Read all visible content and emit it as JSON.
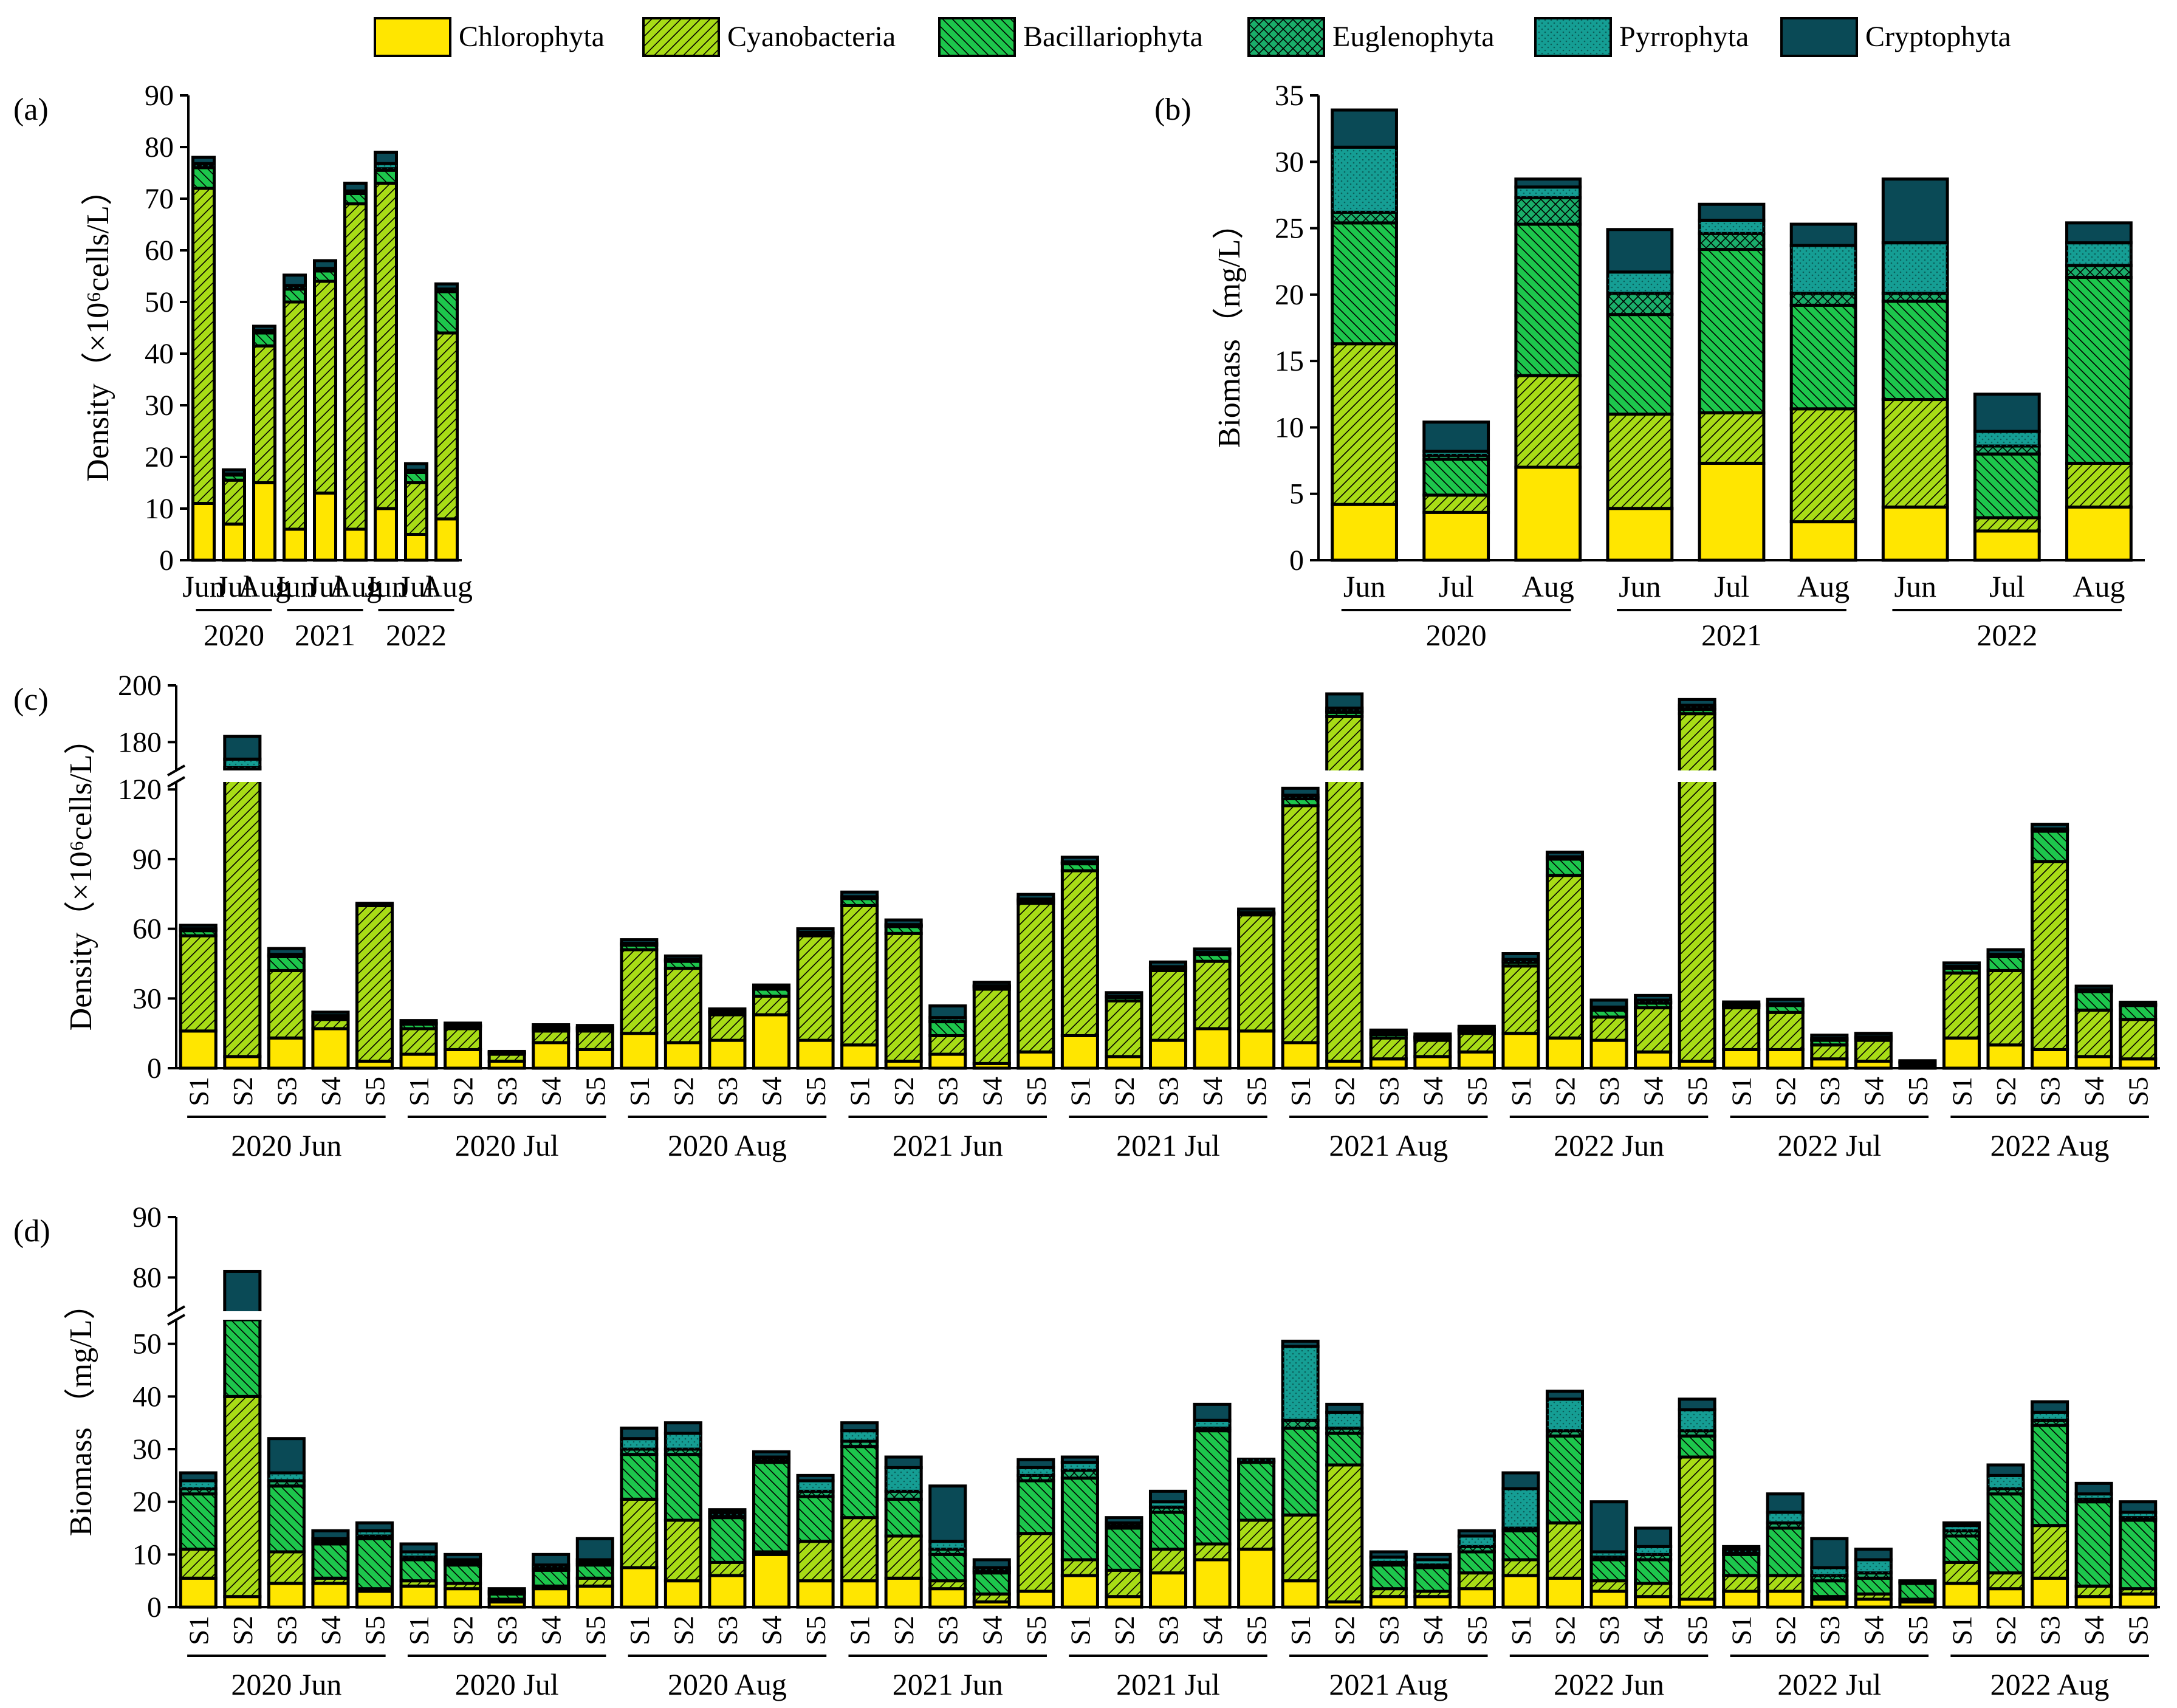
{
  "legend": [
    {
      "name": "Chlorophyta",
      "color": "#ffe600",
      "pattern": "none"
    },
    {
      "name": "Cyanobacteria",
      "color": "#a8dc16",
      "pattern": "fwd"
    },
    {
      "name": "Bacillariophyta",
      "color": "#1dc64c",
      "pattern": "back"
    },
    {
      "name": "Euglenophyta",
      "color": "#1aae6a",
      "pattern": "cross"
    },
    {
      "name": "Pyrrophyta",
      "color": "#159e94",
      "pattern": "dots"
    },
    {
      "name": "Cryptophyta",
      "color": "#0a4a56",
      "pattern": "none"
    }
  ],
  "chart_data": [
    {
      "id": "a",
      "panel_label": "(a)",
      "type": "bar",
      "stacked": true,
      "ylabel": "Density（×10⁶cells/L）",
      "ylim": [
        0,
        90
      ],
      "yticks": [
        0,
        10,
        20,
        30,
        40,
        50,
        60,
        70,
        80,
        90
      ],
      "categories": [
        "Jun",
        "Jul",
        "Aug",
        "Jun",
        "Jul",
        "Aug",
        "Jun",
        "Jul",
        "Aug"
      ],
      "groups": [
        "2020",
        "2021",
        "2022"
      ],
      "series": [
        {
          "name": "Chlorophyta",
          "values": [
            11,
            7,
            15,
            6,
            13,
            6,
            10,
            5,
            8
          ]
        },
        {
          "name": "Cyanobacteria",
          "values": [
            61,
            8.5,
            26.5,
            44,
            41,
            63,
            63,
            10,
            36
          ]
        },
        {
          "name": "Bacillariophyta",
          "values": [
            4,
            1,
            2.5,
            2.5,
            2,
            2,
            2.5,
            2,
            8
          ]
        },
        {
          "name": "Euglenophyta",
          "values": [
            0.3,
            0.1,
            0.2,
            0.2,
            0.2,
            0.2,
            0.3,
            0.1,
            0.2
          ]
        },
        {
          "name": "Pyrrophyta",
          "values": [
            0.5,
            0.1,
            0.3,
            0.5,
            0.3,
            0.3,
            1,
            0.3,
            0.3
          ]
        },
        {
          "name": "Cryptophyta",
          "values": [
            1.2,
            0.8,
            0.8,
            2,
            1.5,
            1.5,
            2.2,
            1.3,
            1
          ]
        }
      ]
    },
    {
      "id": "b",
      "panel_label": "(b)",
      "type": "bar",
      "stacked": true,
      "ylabel": "Biomass（mg/L）",
      "ylim": [
        0,
        35
      ],
      "yticks": [
        0,
        5,
        10,
        15,
        20,
        25,
        30,
        35
      ],
      "categories": [
        "Jun",
        "Jul",
        "Aug",
        "Jun",
        "Jul",
        "Aug",
        "Jun",
        "Jul",
        "Aug"
      ],
      "groups": [
        "2020",
        "2021",
        "2022"
      ],
      "series": [
        {
          "name": "Chlorophyta",
          "values": [
            4.2,
            3.6,
            7.0,
            3.9,
            7.3,
            2.9,
            4.0,
            2.2,
            4.0
          ]
        },
        {
          "name": "Cyanobacteria",
          "values": [
            12.1,
            1.3,
            6.9,
            7.1,
            3.8,
            8.5,
            8.1,
            1.0,
            3.3
          ]
        },
        {
          "name": "Bacillariophyta",
          "values": [
            9.1,
            2.7,
            11.4,
            7.5,
            12.3,
            7.8,
            7.4,
            4.8,
            14.0
          ]
        },
        {
          "name": "Euglenophyta",
          "values": [
            0.8,
            0.3,
            2.0,
            1.6,
            1.2,
            0.9,
            0.6,
            0.6,
            0.9
          ]
        },
        {
          "name": "Pyrrophyta",
          "values": [
            4.9,
            0.3,
            0.8,
            1.6,
            1.0,
            3.6,
            3.8,
            1.1,
            1.7
          ]
        },
        {
          "name": "Cryptophyta",
          "values": [
            2.8,
            2.2,
            0.6,
            3.2,
            1.2,
            1.6,
            4.8,
            2.8,
            1.5
          ]
        }
      ]
    },
    {
      "id": "c",
      "panel_label": "(c)",
      "type": "bar",
      "stacked": true,
      "ylabel": "Density（×10⁶cells/L）",
      "axis_break": {
        "lower": [
          0,
          130
        ],
        "upper": [
          170,
          200
        ]
      },
      "yticks_lower": [
        0,
        30,
        60,
        90,
        120
      ],
      "yticks_upper": [
        180,
        200
      ],
      "stations": [
        "S1",
        "S2",
        "S3",
        "S4",
        "S5"
      ],
      "groups": [
        "2020 Jun",
        "2020 Jul",
        "2020 Aug",
        "2021 Jun",
        "2021 Jul",
        "2021 Aug",
        "2022 Jun",
        "2022 Jul",
        "2022 Aug"
      ],
      "series": [
        {
          "name": "Chlorophyta",
          "values": [
            16,
            5,
            13,
            17,
            3,
            6,
            8,
            3,
            11,
            8,
            15,
            11,
            12,
            23,
            12,
            10,
            3,
            6,
            2,
            7,
            14,
            5,
            12,
            17,
            16,
            11,
            3,
            4,
            5,
            7,
            15,
            13,
            12,
            7,
            3,
            8,
            8,
            4,
            3,
            1,
            13,
            10,
            8,
            5,
            4
          ]
        },
        {
          "name": "Cyanobacteria",
          "values": [
            41,
            156,
            29,
            4,
            67,
            11,
            9,
            3,
            5,
            8,
            36,
            32,
            11,
            8,
            45,
            60,
            55,
            8,
            32,
            64,
            71,
            24,
            30,
            29,
            50,
            102,
            186,
            9,
            7,
            8,
            29,
            70,
            10,
            19,
            187,
            18,
            16,
            6,
            9,
            1,
            28,
            32,
            81,
            20,
            17
          ]
        },
        {
          "name": "Bacillariophyta",
          "values": [
            2.2,
            9,
            6,
            1,
            0.3,
            2,
            1,
            0.5,
            1,
            1,
            2,
            3,
            1,
            3,
            1,
            3,
            3,
            6,
            1,
            1,
            3,
            1.5,
            1,
            3,
            0.5,
            3,
            1.5,
            1.5,
            1,
            1,
            1.5,
            7,
            3,
            2,
            1.5,
            1,
            3,
            2,
            1,
            0.5,
            2,
            6,
            13,
            8,
            6
          ]
        },
        {
          "name": "Euglenophyta",
          "values": [
            0.3,
            1,
            0.5,
            0.3,
            0.1,
            0.2,
            0.2,
            0.1,
            0.2,
            0.2,
            0.3,
            0.3,
            0.2,
            0.3,
            0.2,
            0.3,
            0.3,
            0.3,
            0.2,
            0.3,
            0.3,
            0.2,
            0.2,
            0.3,
            0.2,
            0.5,
            0.5,
            0.2,
            0.2,
            0.2,
            0.3,
            0.5,
            0.3,
            0.3,
            0.5,
            0.2,
            0.2,
            0.2,
            0.2,
            0.1,
            0.3,
            0.5,
            0.5,
            0.3,
            0.3
          ]
        },
        {
          "name": "Pyrrophyta",
          "values": [
            0.5,
            3,
            0.5,
            0.3,
            0.1,
            0.3,
            0.2,
            0.1,
            0.3,
            0.2,
            0.5,
            0.5,
            0.3,
            0.3,
            0.3,
            0.5,
            0.5,
            1.5,
            0.3,
            0.5,
            0.5,
            0.3,
            0.5,
            0.5,
            0.3,
            1,
            1,
            0.5,
            0.5,
            0.5,
            1,
            0.5,
            1,
            1,
            1,
            0.3,
            0.5,
            0.5,
            0.3,
            0.1,
            0.5,
            0.5,
            0.5,
            0.5,
            0.3
          ]
        },
        {
          "name": "Cryptophyta",
          "values": [
            1.5,
            8,
            2.5,
            1.5,
            0.5,
            1,
            1,
            0.5,
            1.2,
            1,
            1.5,
            1.5,
            1,
            1.2,
            1.5,
            2,
            2,
            5,
            1.5,
            2,
            2,
            1.5,
            2,
            1.5,
            1.5,
            3,
            5,
            1.2,
            1,
            1.3,
            2.5,
            2,
            3,
            2,
            2,
            1,
            2,
            1.5,
            1.5,
            0.5,
            1.5,
            2,
            2,
            1.5,
            0.8
          ]
        }
      ]
    },
    {
      "id": "d",
      "panel_label": "(d)",
      "type": "bar",
      "stacked": true,
      "ylabel": "Biomass （mg/L）",
      "axis_break": {
        "lower": [
          0,
          57
        ],
        "upper": [
          73,
          90
        ]
      },
      "yticks_lower": [
        0,
        10,
        20,
        30,
        40,
        50
      ],
      "yticks_upper": [
        80,
        90
      ],
      "stations": [
        "S1",
        "S2",
        "S3",
        "S4",
        "S5"
      ],
      "groups": [
        "2020 Jun",
        "2020 Jul",
        "2020 Aug",
        "2021 Jun",
        "2021 Jul",
        "2021 Aug",
        "2022 Jun",
        "2022 Jul",
        "2022 Aug"
      ],
      "series": [
        {
          "name": "Chlorophyta",
          "values": [
            5.5,
            2,
            4.5,
            4.5,
            3,
            4,
            3.5,
            1,
            3.5,
            4,
            7.5,
            5,
            6,
            10,
            5,
            5,
            5.5,
            3.5,
            1,
            3,
            6,
            2,
            6.5,
            9,
            11,
            5,
            1,
            2,
            2,
            3.5,
            6,
            5.5,
            3,
            2,
            1.5,
            3,
            3,
            1.5,
            1.5,
            1,
            4.5,
            3.5,
            5.5,
            2,
            2.5
          ]
        },
        {
          "name": "Cyanobacteria",
          "values": [
            5.5,
            38,
            6,
            1,
            0.5,
            1,
            1,
            0.5,
            0.5,
            1.5,
            13,
            11.5,
            2.5,
            0.5,
            7.5,
            12,
            8,
            1.5,
            1.5,
            11,
            3,
            5,
            4.5,
            3,
            5.5,
            12.5,
            26,
            1.5,
            1,
            3,
            3,
            10.5,
            2,
            2.5,
            27,
            3,
            3,
            0.5,
            1,
            0.5,
            4,
            3,
            10,
            2,
            1
          ]
        },
        {
          "name": "Bacillariophyta",
          "values": [
            10.5,
            15,
            12.5,
            6.5,
            9.5,
            4,
            3.5,
            1,
            3,
            2.5,
            8.5,
            12.5,
            8.5,
            17,
            8.5,
            13.5,
            7,
            5,
            4,
            10,
            15.5,
            8,
            7,
            21.5,
            11,
            16.5,
            6,
            4.5,
            4.5,
            4,
            5.5,
            16.5,
            4,
            4.5,
            4,
            4,
            9,
            3,
            3,
            3,
            5,
            15,
            19,
            16,
            13
          ]
        },
        {
          "name": "Euglenophyta",
          "values": [
            1,
            1,
            1,
            0.5,
            0.5,
            0.5,
            0.5,
            0.3,
            0.5,
            0.5,
            1,
            1,
            0.5,
            0.5,
            1,
            1,
            1.5,
            1,
            0.5,
            1,
            1.5,
            0.5,
            1,
            0.5,
            0.3,
            1.5,
            1,
            0.5,
            0.5,
            1,
            0.5,
            1,
            0.5,
            1,
            1,
            0.5,
            1,
            1,
            1,
            0.2,
            1,
            1,
            1,
            0.5,
            0.5
          ]
        },
        {
          "name": "Pyrrophyta",
          "values": [
            1.5,
            14,
            1.5,
            0.5,
            1,
            1,
            0.5,
            0.2,
            0.5,
            0.5,
            2,
            3,
            0.5,
            0.5,
            2,
            2,
            4.5,
            1.5,
            0.5,
            1.5,
            1.5,
            0.5,
            1,
            1.5,
            0.3,
            14,
            3,
            1,
            1,
            2,
            7.5,
            6,
            1,
            1.5,
            4,
            0.5,
            2,
            1.5,
            2.5,
            0.2,
            1,
            2.5,
            1.5,
            1,
            1
          ]
        },
        {
          "name": "Cryptophyta",
          "values": [
            1.5,
            11,
            6.5,
            1.5,
            1.5,
            1.5,
            1,
            0.5,
            2,
            4,
            2,
            2,
            0.5,
            1,
            1,
            1.5,
            2,
            10.5,
            1.5,
            1.5,
            1,
            1,
            2,
            3,
            0,
            1,
            1.5,
            1,
            1,
            1,
            3,
            1.5,
            9.5,
            3.5,
            2,
            0.5,
            3.5,
            5.5,
            2,
            0.1,
            0.5,
            2,
            2,
            2,
            2
          ]
        }
      ]
    }
  ]
}
